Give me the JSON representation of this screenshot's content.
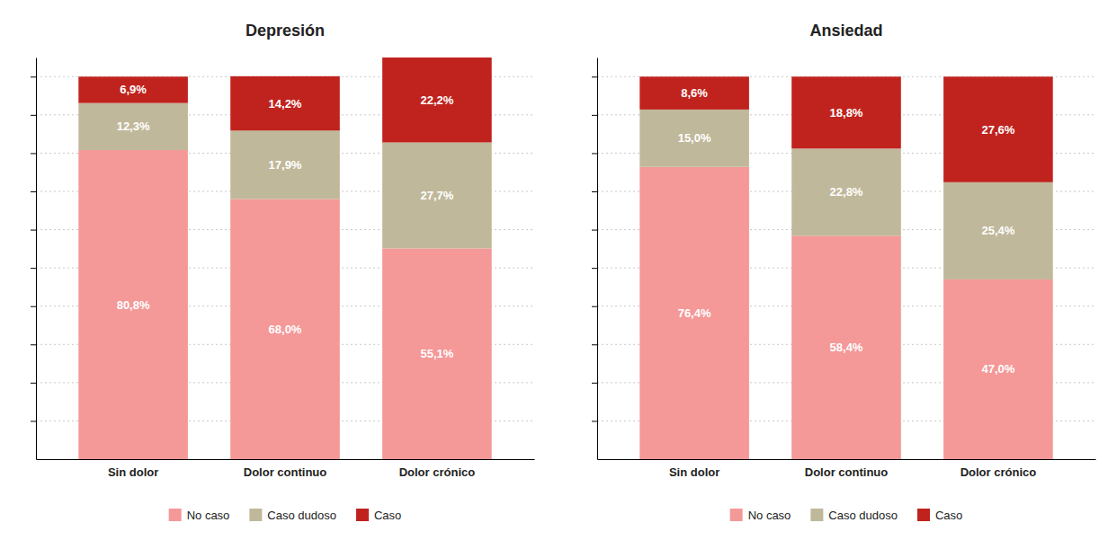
{
  "chart_data": [
    {
      "type": "bar",
      "title": "Depresión",
      "categories": [
        "Sin dolor",
        "Dolor continuo",
        "Dolor crónico"
      ],
      "series": [
        {
          "name": "No caso",
          "color": "#f49898",
          "values": [
            80.8,
            68.0,
            55.1
          ],
          "value_labels": [
            "80,8%",
            "68,0%",
            "55,1%"
          ]
        },
        {
          "name": "Caso dudoso",
          "color": "#c0b89a",
          "values": [
            12.3,
            17.9,
            27.7
          ],
          "value_labels": [
            "12,3%",
            "17,9%",
            "27,7%"
          ]
        },
        {
          "name": "Caso",
          "color": "#c0231e",
          "values": [
            6.9,
            14.2,
            22.2
          ],
          "value_labels": [
            "6,9%",
            "14,2%",
            "22,2%"
          ]
        }
      ],
      "stacked": true,
      "data_labels": true,
      "ylim": [
        0,
        105
      ],
      "yticks": [
        10,
        20,
        30,
        40,
        50,
        60,
        70,
        80,
        90,
        100
      ],
      "grid": true,
      "tick_labels": "x",
      "legend": "bottom"
    },
    {
      "type": "bar",
      "title": "Ansiedad",
      "categories": [
        "Sin dolor",
        "Dolor continuo",
        "Dolor crónico"
      ],
      "series": [
        {
          "name": "No caso",
          "color": "#f49898",
          "values": [
            76.4,
            58.4,
            47.0
          ],
          "value_labels": [
            "76,4%",
            "58,4%",
            "47,0%"
          ]
        },
        {
          "name": "Caso dudoso",
          "color": "#c0b89a",
          "values": [
            15.0,
            22.8,
            25.4
          ],
          "value_labels": [
            "15,0%",
            "22,8%",
            "25,4%"
          ]
        },
        {
          "name": "Caso",
          "color": "#c0231e",
          "values": [
            8.6,
            18.8,
            27.6
          ],
          "value_labels": [
            "8,6%",
            "18,8%",
            "27,6%"
          ]
        }
      ],
      "stacked": true,
      "data_labels": true,
      "ylim": [
        0,
        105
      ],
      "yticks": [
        10,
        20,
        30,
        40,
        50,
        60,
        70,
        80,
        90,
        100
      ],
      "grid": true,
      "tick_labels": "x",
      "legend": "bottom"
    }
  ]
}
